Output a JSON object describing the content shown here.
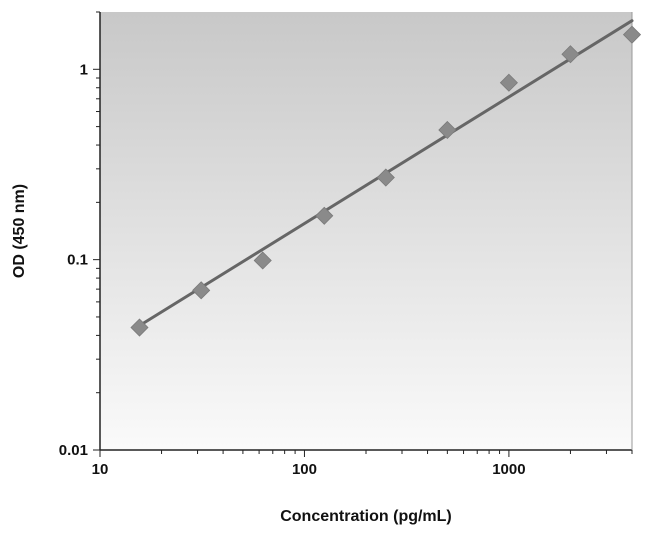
{
  "chart_data": {
    "type": "scatter",
    "title": "",
    "xlabel": "Concentration (pg/mL)",
    "ylabel": "OD (450 nm)",
    "x_scale": "log",
    "y_scale": "log",
    "xlim": [
      10,
      4000
    ],
    "ylim": [
      0.01,
      2
    ],
    "x_ticks": [
      10,
      100,
      1000
    ],
    "x_tick_labels": [
      "10",
      "100",
      "1000"
    ],
    "y_ticks": [
      0.01,
      0.1,
      1
    ],
    "y_tick_labels": [
      "0.01",
      "0.1",
      "1"
    ],
    "grid": false,
    "legend": "none",
    "series": [
      {
        "x": [
          15.6,
          31.25,
          62.5,
          125,
          250,
          500,
          1000,
          2000,
          4000
        ],
        "y": [
          0.044,
          0.069,
          0.099,
          0.17,
          0.27,
          0.48,
          0.85,
          1.2,
          1.52
        ],
        "marker": "diamond",
        "color": "#8a8a8a"
      }
    ],
    "fit_line": {
      "x": [
        15.6,
        4000
      ],
      "y": [
        0.045,
        1.8
      ],
      "color": "#666666"
    },
    "background_gradient": [
      "#c8c8c8",
      "#fafafa"
    ]
  }
}
